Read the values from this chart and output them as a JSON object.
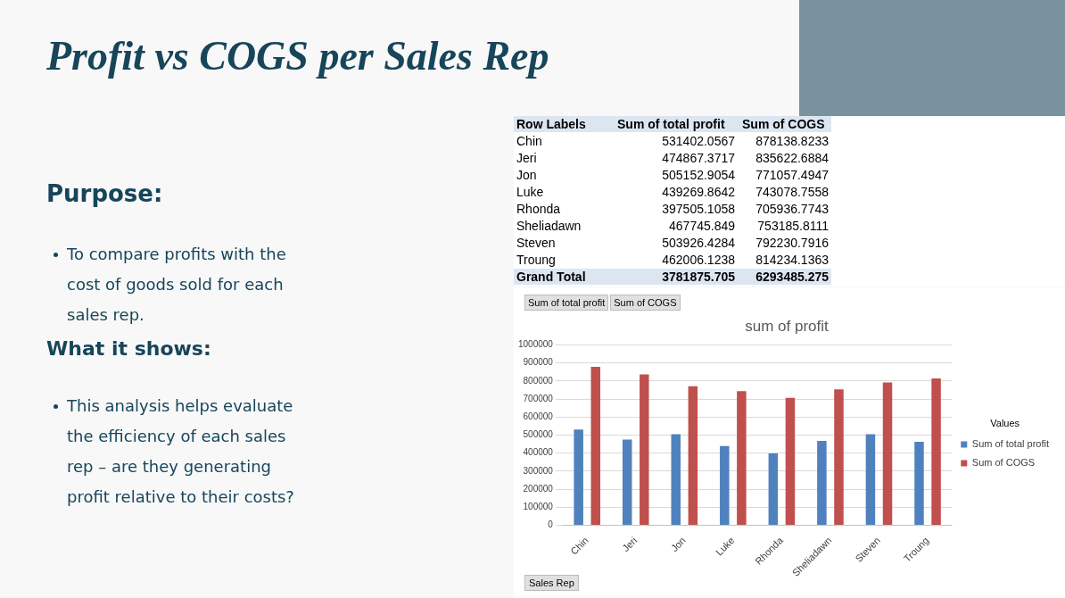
{
  "chart_data": [
    {
      "type": "other",
      "title": "Profit vs COGS per Sales Rep",
      "annotations": [
        "Purpose:",
        "To compare profits with the cost of goods sold for each sales rep.",
        "What it shows:",
        "This analysis helps evaluate the efficiency of each sales rep – are they generating profit relative to their costs?",
        "Row Labels",
        "Sum of total profit",
        "Sum of COGS",
        "Chin",
        "531402.0567",
        "878138.8233",
        "Jeri",
        "474867.3717",
        "835622.6884",
        "Jon",
        "505152.9054",
        "771057.4947",
        "Luke",
        "439269.8642",
        "743078.7558",
        "Rhonda",
        "397505.1058",
        "705936.7743",
        "Sheliadawn",
        "467745.849",
        "753185.8111",
        "Steven",
        "503926.4284",
        "792230.7916",
        "Troung",
        "462006.1238",
        "814234.1363",
        "Grand Total",
        "3781875.705",
        "6293485.275"
      ]
    },
    {
      "type": "bar",
      "title": "sum of profit",
      "xlabel": "Sales Rep",
      "legend_title": "Values",
      "legend": "right",
      "grid": "y",
      "categories": [
        "Chin",
        "Jeri",
        "Jon",
        "Luke",
        "Rhonda",
        "Sheliadawn",
        "Steven",
        "Troung"
      ],
      "series": [
        {
          "name": "Sum of total profit",
          "color": "#4f81bd",
          "values": [
            531000,
            475000,
            505000,
            439000,
            398000,
            468000,
            504000,
            462000
          ]
        },
        {
          "name": "Sum of COGS",
          "color": "#c0504d",
          "values": [
            878000,
            836000,
            771000,
            743000,
            706000,
            753000,
            792000,
            814000
          ]
        }
      ],
      "ylim": [
        0,
        1000000
      ],
      "yticks": [
        0,
        100000,
        200000,
        300000,
        400000,
        500000,
        600000,
        700000,
        800000,
        900000,
        1000000
      ]
    }
  ]
}
